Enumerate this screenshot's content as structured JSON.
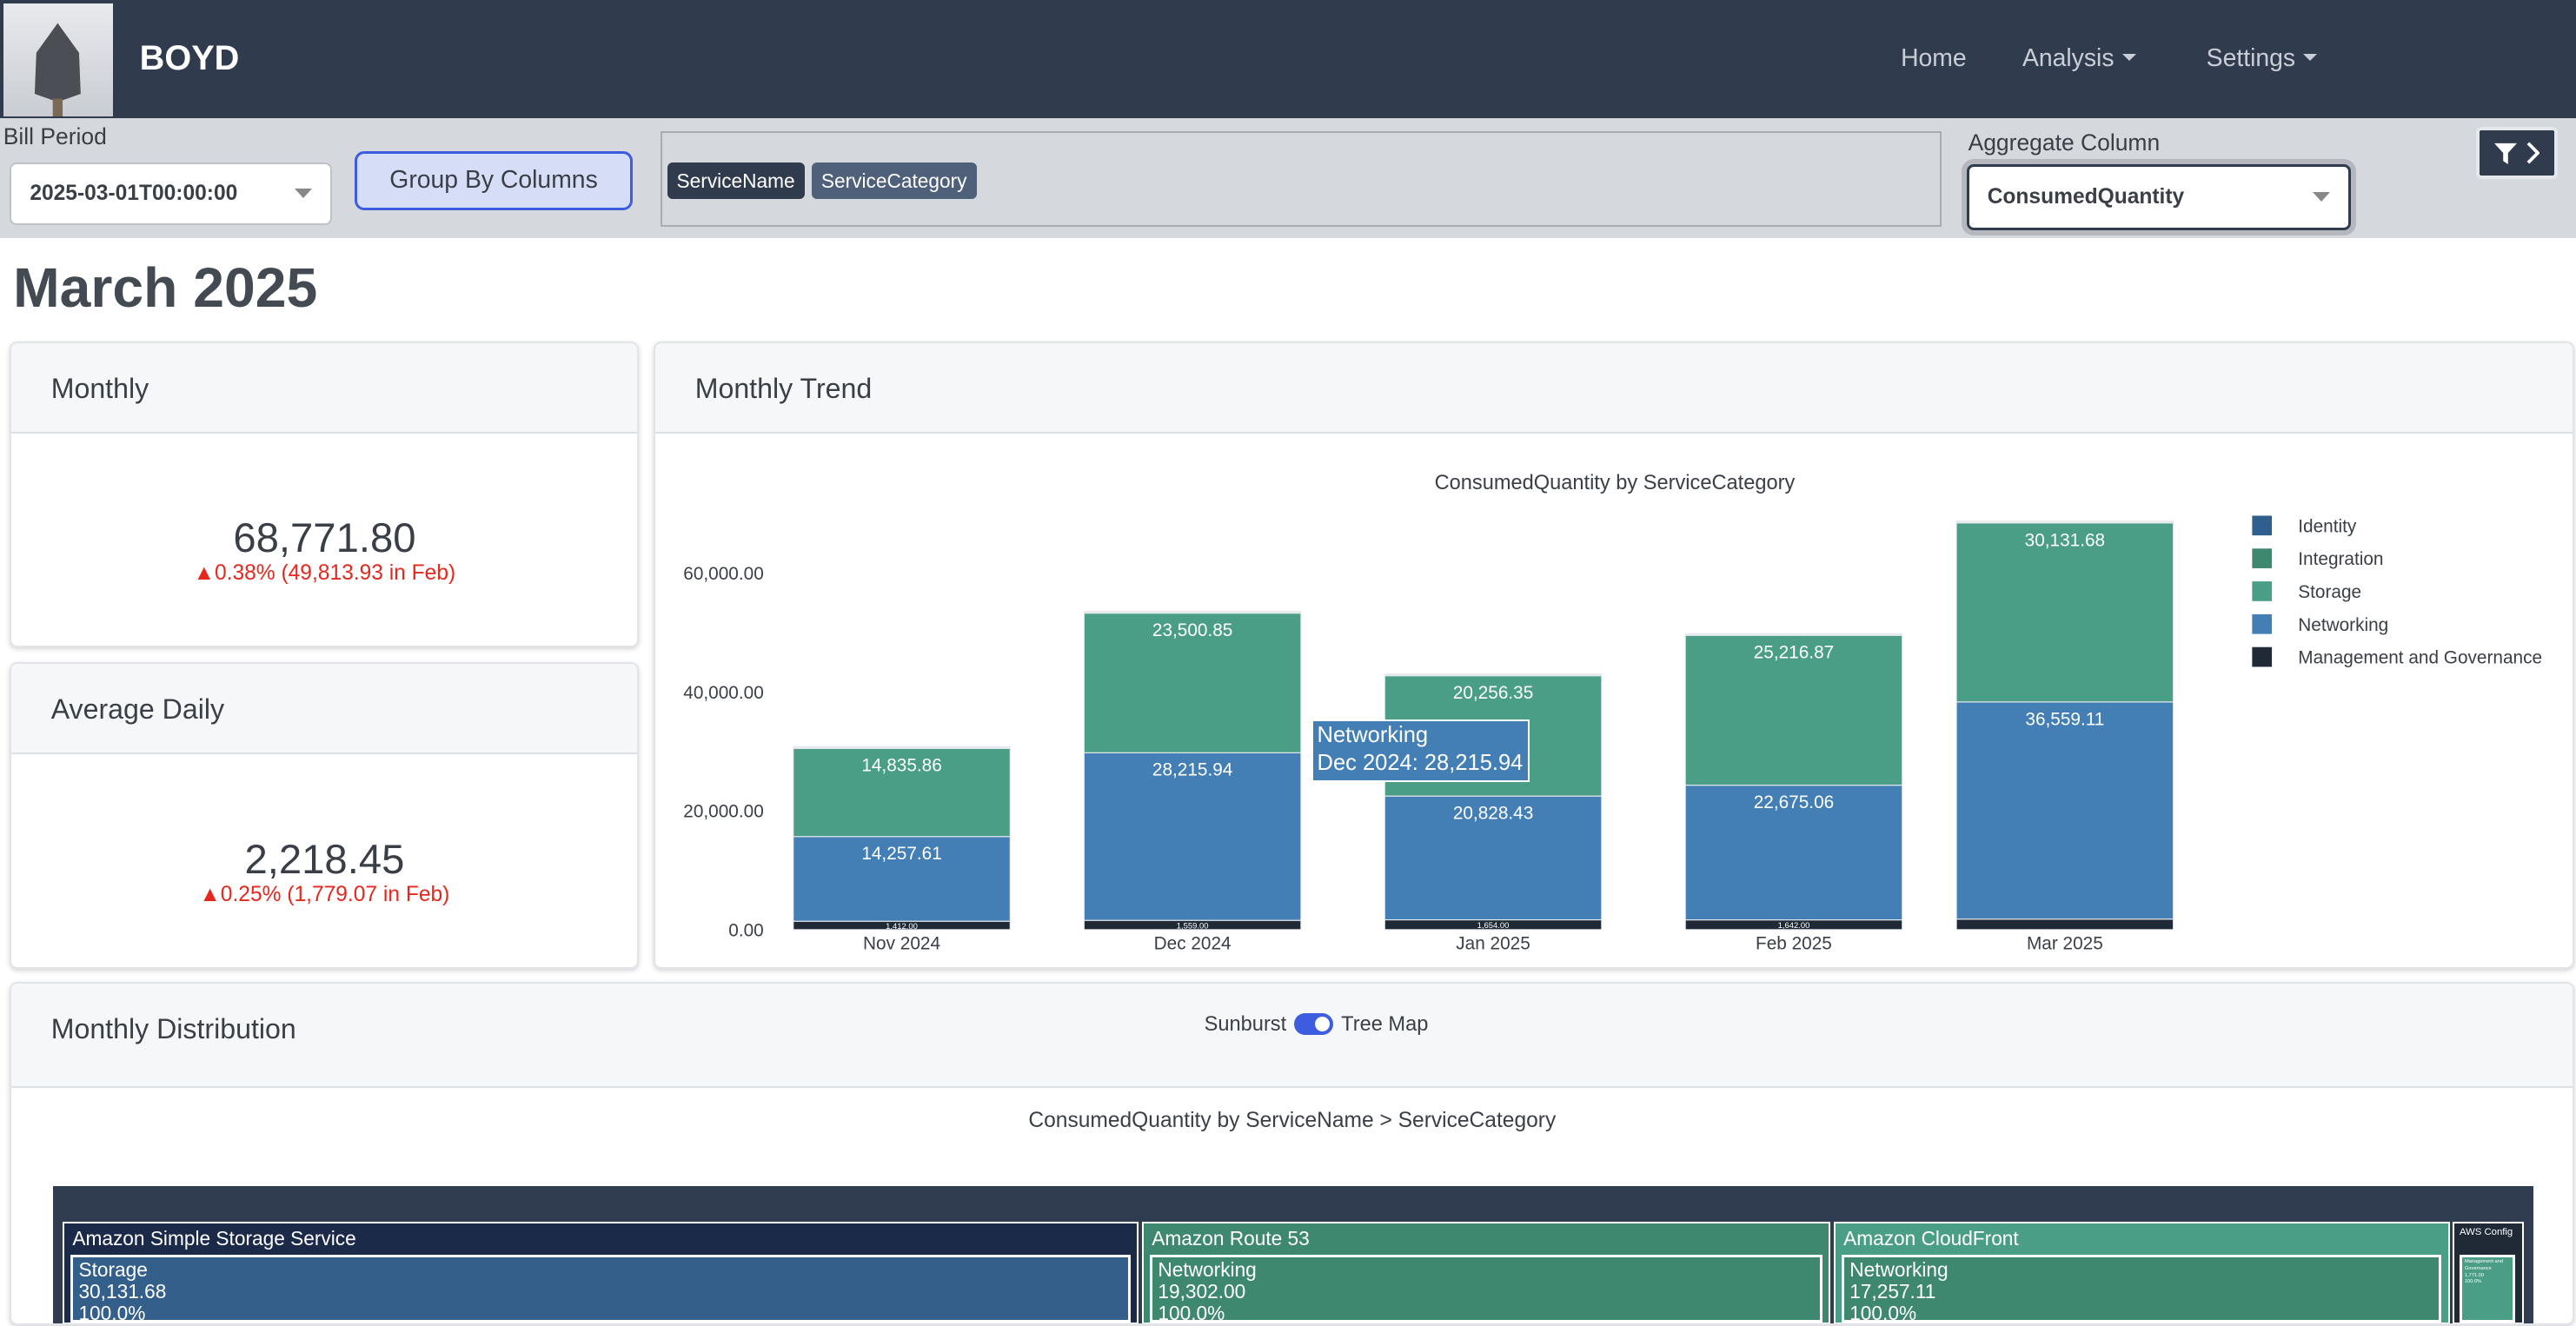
{
  "nav": {
    "brand": "BOYD",
    "links": [
      "Home",
      "Analysis",
      "Settings"
    ]
  },
  "filters": {
    "bill_period_label": "Bill Period",
    "bill_period_value": "2025-03-01T00:00:00",
    "group_by_button": "Group By Columns",
    "group_by_chips": [
      "ServiceName",
      "ServiceCategory"
    ],
    "aggregate_label": "Aggregate Column",
    "aggregate_value": "ConsumedQuantity",
    "filter_icon": "filter-icon"
  },
  "page_title": "March 2025",
  "monthly": {
    "title": "Monthly",
    "value": "68,771.80",
    "delta": "▲0.38% (49,813.93 in Feb)"
  },
  "average_daily": {
    "title": "Average Daily",
    "value": "2,218.45",
    "delta": "▲0.25% (1,779.07 in Feb)"
  },
  "trend": {
    "title": "Monthly Trend",
    "tooltip": {
      "series": "Networking",
      "text": "Dec 2024: 28,215.94"
    }
  },
  "chart_data": {
    "type": "bar",
    "stacked": true,
    "title": "ConsumedQuantity by ServiceCategory",
    "categories": [
      "Nov 2024",
      "Dec 2024",
      "Jan 2025",
      "Feb 2025",
      "Mar 2025"
    ],
    "ylim": [
      0,
      70000
    ],
    "yticks": [
      "0.00",
      "20,000.00",
      "40,000.00",
      "60,000.00"
    ],
    "legend_position": "right",
    "series": [
      {
        "name": "Management and Governance",
        "color": "#1f2a36",
        "values": [
          1412.0,
          1559.0,
          1654.0,
          1642.0,
          1771.0
        ],
        "labels": [
          "1,412.00",
          "1,559.00",
          "1,654.00",
          "1,642.00",
          ""
        ]
      },
      {
        "name": "Networking",
        "color": "#437fb5",
        "values": [
          14257.61,
          28215.94,
          20828.43,
          22675.06,
          36559.11
        ],
        "labels": [
          "14,257.61",
          "28,215.94",
          "20,828.43",
          "22,675.06",
          "36,559.11"
        ]
      },
      {
        "name": "Storage",
        "color": "#4a9e86",
        "values": [
          14835.86,
          23500.85,
          20256.35,
          25216.87,
          30131.68
        ],
        "labels": [
          "14,835.86",
          "23,500.85",
          "20,256.35",
          "25,216.87",
          "30,131.68"
        ]
      },
      {
        "name": "Integration",
        "color": "#3e8870",
        "values": [
          150,
          150,
          150,
          150,
          150
        ],
        "labels": [
          "",
          "",
          "",
          "",
          ""
        ]
      },
      {
        "name": "Identity",
        "color": "#2f5f8c",
        "values": [
          150,
          150,
          150,
          150,
          150
        ],
        "labels": [
          "",
          "",
          "",
          "",
          ""
        ]
      }
    ],
    "legend_order": [
      "Identity",
      "Integration",
      "Storage",
      "Networking",
      "Management and Governance"
    ]
  },
  "distribution": {
    "title": "Monthly Distribution",
    "toggle_left": "Sunburst",
    "toggle_right": "Tree Map",
    "chart_title": "ConsumedQuantity by ServiceName > ServiceCategory",
    "treemap": [
      {
        "name": "Amazon Simple Storage Service",
        "color": "#1c2a4a",
        "leaf": {
          "name": "Storage",
          "value": "30,131.68",
          "pct": "100.0%",
          "color": "#335f8a"
        }
      },
      {
        "name": "Amazon Route 53",
        "color": "#3e8870",
        "leaf": {
          "name": "Networking",
          "value": "19,302.00",
          "pct": "100.0%",
          "color": "#3e8870"
        }
      },
      {
        "name": "Amazon CloudFront",
        "color": "#4a9e86",
        "leaf": {
          "name": "Networking",
          "value": "17,257.11",
          "pct": "100.0%",
          "color": "#3e8870"
        }
      },
      {
        "name": "AWS Config",
        "color": "#1f2a36",
        "leaf": {
          "name": "Management and Governance",
          "value": "1,771.00",
          "pct": "100.0%",
          "color": "#4a9e86"
        }
      }
    ]
  }
}
